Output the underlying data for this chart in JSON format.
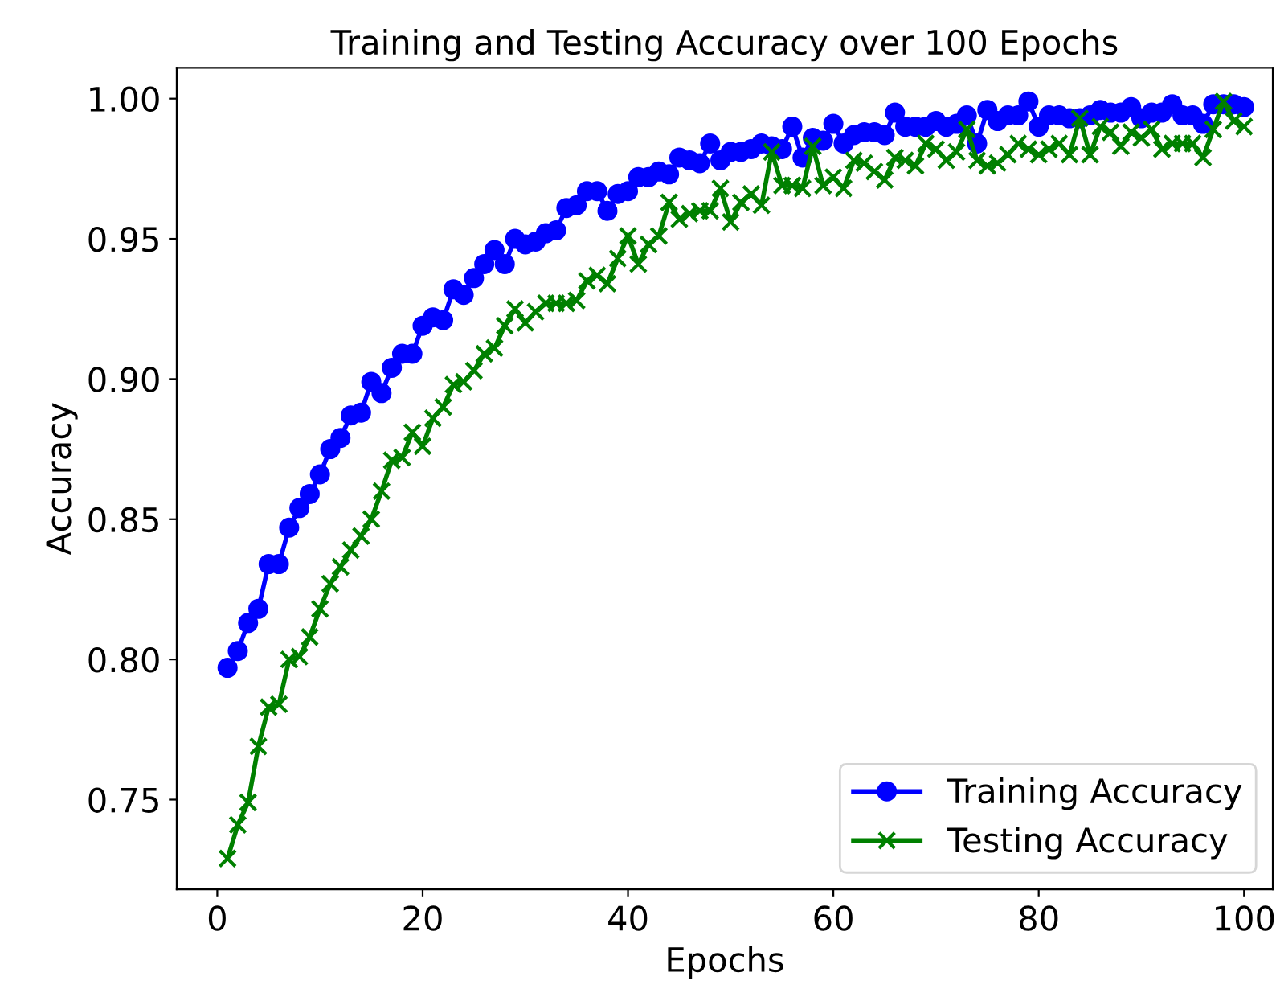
{
  "chart_data": {
    "type": "line",
    "title": "Training and Testing Accuracy over 100 Epochs",
    "xlabel": "Epochs",
    "ylabel": "Accuracy",
    "x": [
      1,
      2,
      3,
      4,
      5,
      6,
      7,
      8,
      9,
      10,
      11,
      12,
      13,
      14,
      15,
      16,
      17,
      18,
      19,
      20,
      21,
      22,
      23,
      24,
      25,
      26,
      27,
      28,
      29,
      30,
      31,
      32,
      33,
      34,
      35,
      36,
      37,
      38,
      39,
      40,
      41,
      42,
      43,
      44,
      45,
      46,
      47,
      48,
      49,
      50,
      51,
      52,
      53,
      54,
      55,
      56,
      57,
      58,
      59,
      60,
      61,
      62,
      63,
      64,
      65,
      66,
      67,
      68,
      69,
      70,
      71,
      72,
      73,
      74,
      75,
      76,
      77,
      78,
      79,
      80,
      81,
      82,
      83,
      84,
      85,
      86,
      87,
      88,
      89,
      90,
      91,
      92,
      93,
      94,
      95,
      96,
      97,
      98,
      99,
      100
    ],
    "series": [
      {
        "name": "Training Accuracy",
        "color": "#0000ff",
        "marker": "circle",
        "values": [
          0.797,
          0.803,
          0.813,
          0.818,
          0.834,
          0.834,
          0.847,
          0.854,
          0.859,
          0.866,
          0.875,
          0.879,
          0.887,
          0.888,
          0.899,
          0.895,
          0.904,
          0.909,
          0.909,
          0.919,
          0.922,
          0.921,
          0.932,
          0.93,
          0.936,
          0.941,
          0.946,
          0.941,
          0.95,
          0.948,
          0.949,
          0.952,
          0.953,
          0.961,
          0.962,
          0.967,
          0.967,
          0.96,
          0.966,
          0.967,
          0.972,
          0.972,
          0.974,
          0.973,
          0.979,
          0.978,
          0.977,
          0.984,
          0.978,
          0.981,
          0.981,
          0.982,
          0.984,
          0.983,
          0.982,
          0.99,
          0.979,
          0.986,
          0.985,
          0.991,
          0.984,
          0.987,
          0.988,
          0.988,
          0.987,
          0.995,
          0.99,
          0.99,
          0.99,
          0.992,
          0.99,
          0.991,
          0.994,
          0.984,
          0.996,
          0.992,
          0.994,
          0.994,
          0.999,
          0.99,
          0.994,
          0.994,
          0.993,
          0.993,
          0.994,
          0.996,
          0.995,
          0.995,
          0.997,
          0.993,
          0.995,
          0.995,
          0.998,
          0.994,
          0.994,
          0.991,
          0.998,
          0.998,
          0.998,
          0.997
        ]
      },
      {
        "name": "Testing Accuracy",
        "color": "#008000",
        "marker": "cross",
        "values": [
          0.729,
          0.741,
          0.749,
          0.769,
          0.783,
          0.784,
          0.8,
          0.801,
          0.808,
          0.818,
          0.827,
          0.833,
          0.839,
          0.844,
          0.85,
          0.86,
          0.871,
          0.872,
          0.881,
          0.876,
          0.886,
          0.89,
          0.898,
          0.899,
          0.903,
          0.909,
          0.911,
          0.919,
          0.925,
          0.92,
          0.924,
          0.927,
          0.927,
          0.927,
          0.928,
          0.935,
          0.937,
          0.934,
          0.943,
          0.951,
          0.941,
          0.948,
          0.951,
          0.963,
          0.957,
          0.959,
          0.96,
          0.96,
          0.968,
          0.956,
          0.963,
          0.966,
          0.962,
          0.981,
          0.969,
          0.969,
          0.968,
          0.983,
          0.969,
          0.972,
          0.968,
          0.978,
          0.977,
          0.974,
          0.971,
          0.979,
          0.978,
          0.976,
          0.984,
          0.982,
          0.978,
          0.981,
          0.989,
          0.978,
          0.976,
          0.977,
          0.98,
          0.984,
          0.982,
          0.98,
          0.982,
          0.984,
          0.98,
          0.993,
          0.98,
          0.99,
          0.988,
          0.983,
          0.988,
          0.986,
          0.989,
          0.982,
          0.984,
          0.984,
          0.984,
          0.979,
          0.989,
          0.999,
          0.992,
          0.99
        ]
      }
    ],
    "xlim": [
      -3.95,
      102.8
    ],
    "ylim": [
      0.718,
      1.011
    ],
    "xticks": [
      0,
      20,
      40,
      60,
      80,
      100
    ],
    "yticks": [
      {
        "value": 0.75,
        "label": "0.75"
      },
      {
        "value": 0.8,
        "label": "0.80"
      },
      {
        "value": 0.85,
        "label": "0.85"
      },
      {
        "value": 0.9,
        "label": "0.90"
      },
      {
        "value": 0.95,
        "label": "0.95"
      },
      {
        "value": 1.0,
        "label": "1.00"
      }
    ],
    "grid": false,
    "legend": "lower right",
    "line_style": "solid"
  }
}
